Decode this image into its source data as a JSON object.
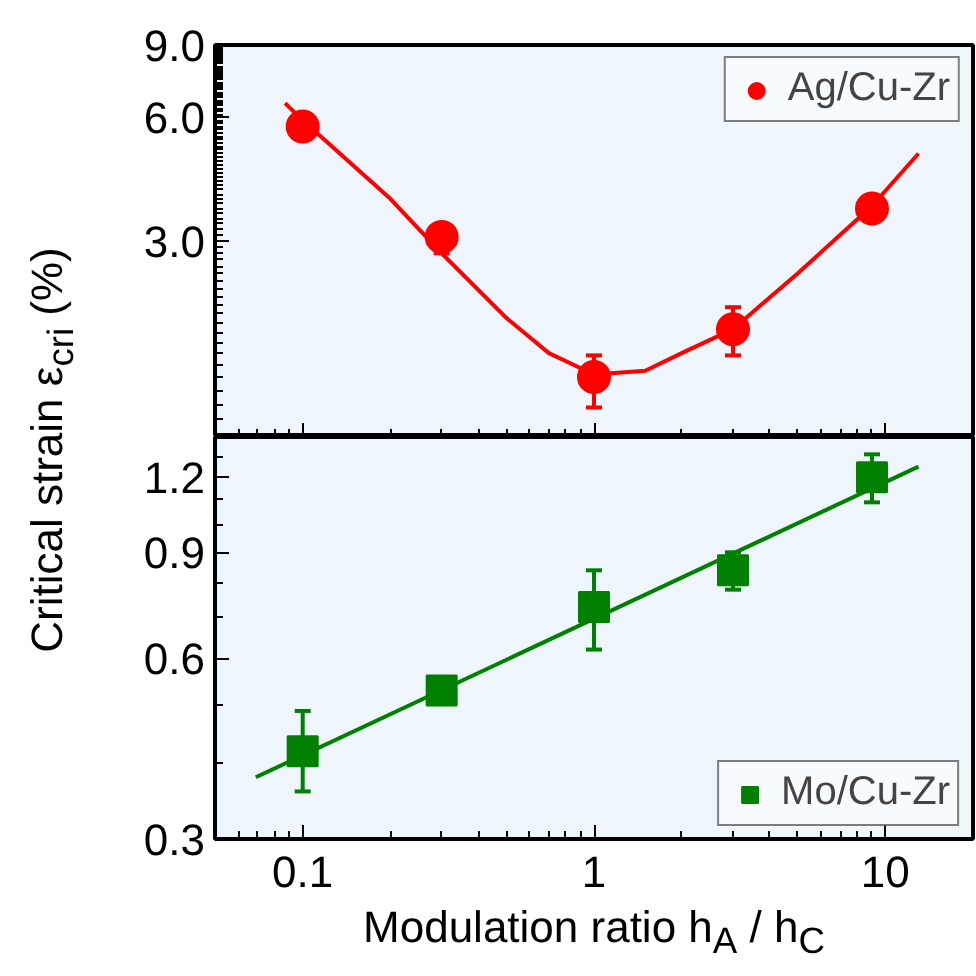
{
  "chart_data": [
    {
      "type": "scatter",
      "ylabel": "Critical strain ε$_{cri}$ (%)",
      "log": "xy",
      "xlim": [
        0.05,
        20
      ],
      "xticks": [
        {
          "value": 0.1,
          "label": null
        },
        {
          "value": 1,
          "label": null
        },
        {
          "value": 10,
          "label": null
        }
      ],
      "ylim": [
        1.0,
        9.0
      ],
      "yticks": [
        {
          "value": 3.0,
          "label": "3.0"
        },
        {
          "value": 6.0,
          "label": "6.0"
        },
        {
          "value": 9.0,
          "label": "9.0"
        }
      ],
      "tick_labels": "y",
      "grid": false,
      "legend": "top right",
      "series": [
        {
          "name": "Ag/Cu-Zr",
          "marker": "circle",
          "color": "#ff0000",
          "x": [
            0.1,
            0.3,
            1,
            3,
            9
          ],
          "values": [
            5.7,
            3.07,
            1.4,
            1.83,
            3.6
          ],
          "errors": [
            null,
            [
              2.8,
              3.3
            ],
            [
              1.18,
              1.58
            ],
            [
              1.58,
              2.07
            ],
            null
          ]
        },
        {
          "type": "line",
          "color": "#ff0000",
          "x": [
            0.087,
            0.1,
            0.2,
            0.3,
            0.5,
            0.7,
            1,
            1.5,
            2,
            3,
            5,
            9,
            13
          ],
          "values": [
            6.5,
            5.9,
            3.8,
            2.8,
            1.95,
            1.6,
            1.42,
            1.45,
            1.6,
            1.83,
            2.5,
            3.65,
            4.9
          ]
        }
      ]
    },
    {
      "type": "scatter",
      "xlabel": "Modulation ratio h$_{A}$ / h$_{C}$",
      "log": "xy",
      "xlim": [
        0.05,
        20
      ],
      "xticks": [
        0.1,
        1,
        10
      ],
      "ylim": [
        0.3,
        1.4
      ],
      "yticks": [
        0.3,
        0.6,
        0.9,
        1.2
      ],
      "grid": false,
      "legend": "bottom right",
      "series": [
        {
          "name": "Mo/Cu-Zr",
          "marker": "square",
          "color": "#008000",
          "x": [
            0.1,
            0.3,
            1,
            3,
            9
          ],
          "values": [
            0.42,
            0.53,
            0.73,
            0.84,
            1.2
          ],
          "errors": [
            [
              0.36,
              0.49
            ],
            null,
            [
              0.62,
              0.84
            ],
            [
              0.78,
              0.9
            ],
            [
              1.09,
              1.31
            ]
          ]
        },
        {
          "type": "line",
          "color": "#008000",
          "x": [
            0.069,
            13
          ],
          "values": [
            0.38,
            1.25
          ]
        }
      ]
    }
  ]
}
